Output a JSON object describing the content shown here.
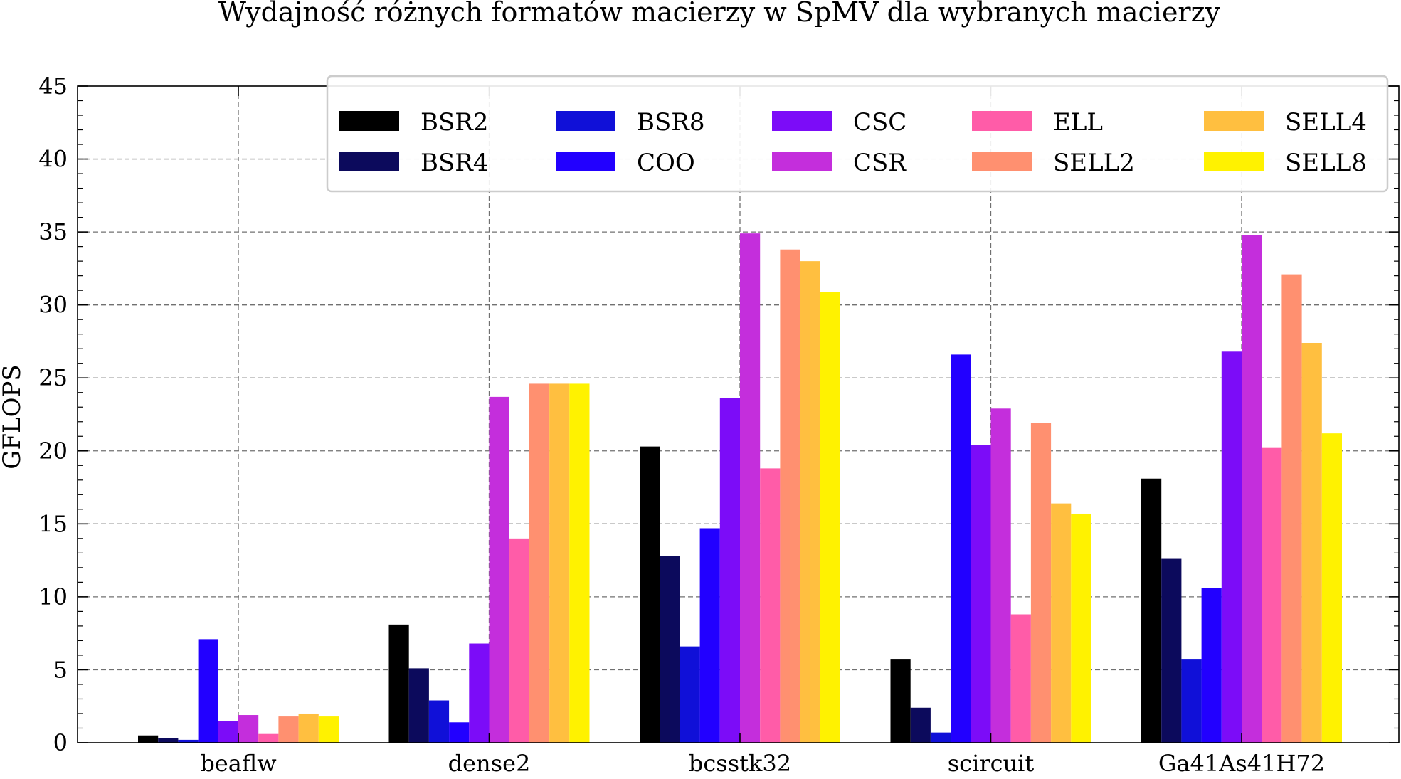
{
  "chart_data": {
    "type": "bar",
    "title": "Wydajność różnych formatów macierzy w SpMV dla wybranych macierzy",
    "xlabel": "",
    "ylabel": "GFLOPS",
    "ylim": [
      0,
      45
    ],
    "yticks": [
      0,
      5,
      10,
      15,
      20,
      25,
      30,
      35,
      40,
      45
    ],
    "grid": true,
    "legend_position": "top-right",
    "categories": [
      "beaflw",
      "dense2",
      "bcsstk32",
      "scircuit",
      "Ga41As41H72"
    ],
    "series": [
      {
        "name": "BSR2",
        "color": "#000000",
        "values": [
          0.5,
          8.1,
          20.3,
          5.7,
          18.1
        ]
      },
      {
        "name": "BSR4",
        "color": "#0c0a5c",
        "values": [
          0.3,
          5.1,
          12.8,
          2.4,
          12.6
        ]
      },
      {
        "name": "BSR8",
        "color": "#1010d8",
        "values": [
          0.2,
          2.9,
          6.6,
          0.7,
          5.7
        ]
      },
      {
        "name": "COO",
        "color": "#2200ff",
        "values": [
          7.1,
          1.4,
          14.7,
          26.6,
          10.6
        ]
      },
      {
        "name": "CSC",
        "color": "#7c0cf8",
        "values": [
          1.5,
          6.8,
          23.6,
          20.4,
          26.8
        ]
      },
      {
        "name": "CSR",
        "color": "#c42edc",
        "values": [
          1.9,
          23.7,
          34.9,
          22.9,
          34.8
        ]
      },
      {
        "name": "ELL",
        "color": "#ff5ca8",
        "values": [
          0.6,
          14.0,
          18.8,
          8.8,
          20.2
        ]
      },
      {
        "name": "SELL2",
        "color": "#ff9070",
        "values": [
          1.8,
          24.6,
          33.8,
          21.9,
          32.1
        ]
      },
      {
        "name": "SELL4",
        "color": "#ffbf40",
        "values": [
          2.0,
          24.6,
          33.0,
          16.4,
          27.4
        ]
      },
      {
        "name": "SELL8",
        "color": "#fff200",
        "values": [
          1.8,
          24.6,
          30.9,
          15.7,
          21.2
        ]
      }
    ]
  }
}
